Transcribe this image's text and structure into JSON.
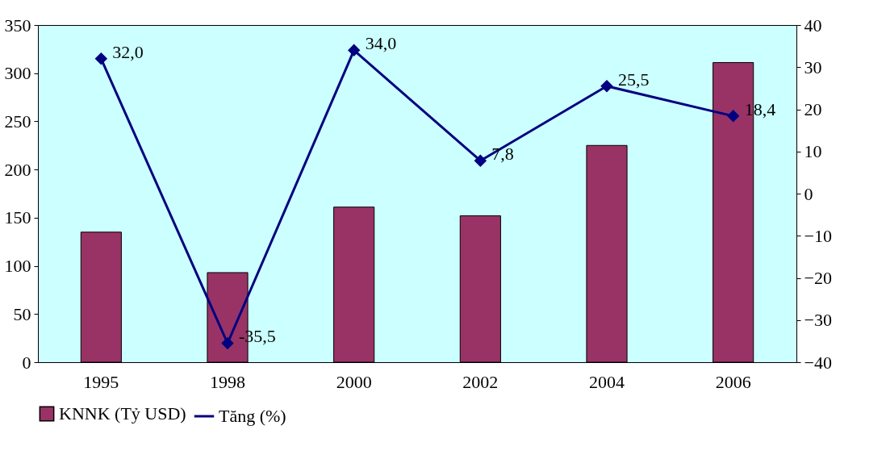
{
  "chart_data": {
    "type": "bar",
    "categories": [
      "1995",
      "1998",
      "2000",
      "2002",
      "2004",
      "2006"
    ],
    "series": [
      {
        "name": "KNNK (Tỷ USD)",
        "color": "#993366",
        "values": [
          135,
          93,
          161,
          152,
          225,
          311
        ]
      },
      {
        "name": "Tăng (%)",
        "type": "line",
        "axis": "y2",
        "color": "#000080",
        "marker": "diamond",
        "values": [
          32.0,
          -35.5,
          34.0,
          7.8,
          25.5,
          18.4
        ],
        "value_labels": [
          "32,0",
          "-35,5",
          "34,0",
          "7,8",
          "25,5",
          "18,4"
        ]
      }
    ],
    "ylim": [
      0,
      350
    ],
    "yticks": [
      0,
      50,
      100,
      150,
      200,
      250,
      300,
      350
    ],
    "y2lim": [
      -40,
      40
    ],
    "y2ticks": [
      -40,
      -30,
      -20,
      -10,
      0,
      10,
      20,
      30,
      40
    ],
    "grid": false,
    "legend": "bottom"
  }
}
